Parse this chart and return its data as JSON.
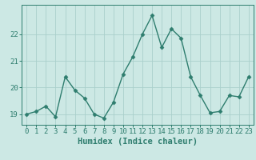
{
  "x": [
    0,
    1,
    2,
    3,
    4,
    5,
    6,
    7,
    8,
    9,
    10,
    11,
    12,
    13,
    14,
    15,
    16,
    17,
    18,
    19,
    20,
    21,
    22,
    23
  ],
  "y": [
    19.0,
    19.1,
    19.3,
    18.9,
    20.4,
    19.9,
    19.6,
    19.0,
    18.85,
    19.45,
    20.5,
    21.15,
    22.0,
    22.7,
    21.5,
    22.2,
    21.85,
    20.4,
    19.7,
    19.05,
    19.1,
    19.7,
    19.65,
    20.4
  ],
  "line_color": "#2e7d6e",
  "marker": "D",
  "marker_size": 2.5,
  "line_width": 1.0,
  "xlabel": "Humidex (Indice chaleur)",
  "xlim": [
    -0.5,
    23.5
  ],
  "ylim": [
    18.6,
    23.1
  ],
  "yticks": [
    19,
    20,
    21,
    22
  ],
  "xticks": [
    0,
    1,
    2,
    3,
    4,
    5,
    6,
    7,
    8,
    9,
    10,
    11,
    12,
    13,
    14,
    15,
    16,
    17,
    18,
    19,
    20,
    21,
    22,
    23
  ],
  "bg_color": "#cce8e4",
  "grid_color": "#aacfcb",
  "tick_color": "#2e7d6e",
  "label_color": "#2e7d6e",
  "font_size_ticks": 6.5,
  "font_size_xlabel": 7.5
}
